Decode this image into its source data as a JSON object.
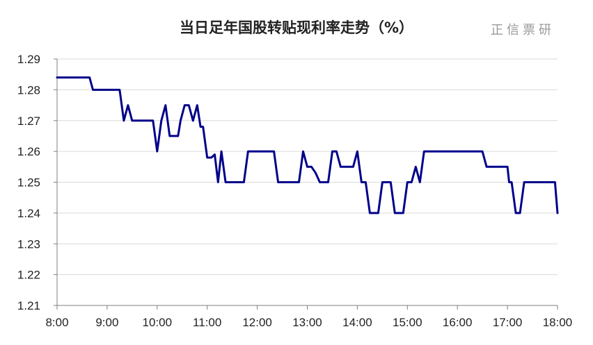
{
  "chart_data": {
    "type": "line",
    "title": "当日足年国股转贴现利率走势（%）",
    "watermark": "正信票研",
    "xlabel": "",
    "ylabel": "",
    "ylim": [
      1.21,
      1.29
    ],
    "yticks": [
      "1.21",
      "1.22",
      "1.23",
      "1.24",
      "1.25",
      "1.26",
      "1.27",
      "1.28",
      "1.29"
    ],
    "xticks": [
      "8:00",
      "9:00",
      "10:00",
      "11:00",
      "12:00",
      "13:00",
      "14:00",
      "15:00",
      "16:00",
      "17:00",
      "18:00"
    ],
    "grid": "horizontal",
    "line_color": "#00008B",
    "series": [
      {
        "x": [
          "8:00",
          "8:39",
          "8:43",
          "9:15",
          "9:20",
          "9:25",
          "9:30",
          "9:55",
          "10:00",
          "10:05",
          "10:10",
          "10:15",
          "10:25",
          "10:28",
          "10:33",
          "10:38",
          "10:43",
          "10:48",
          "10:52",
          "10:55",
          "11:00",
          "11:05",
          "11:09",
          "11:13",
          "11:17",
          "11:22",
          "11:44",
          "11:49",
          "12:20",
          "12:25",
          "12:45",
          "12:50",
          "12:55",
          "13:00",
          "13:05",
          "13:10",
          "13:15",
          "13:25",
          "13:30",
          "13:35",
          "13:40",
          "13:55",
          "14:00",
          "14:05",
          "14:10",
          "14:15",
          "14:25",
          "14:30",
          "14:40",
          "14:45",
          "14:55",
          "15:00",
          "15:05",
          "15:10",
          "15:15",
          "15:20",
          "16:30",
          "16:35",
          "16:55",
          "17:00",
          "17:02",
          "17:05",
          "17:10",
          "17:15",
          "17:20",
          "17:25",
          "17:57",
          "18:00"
        ],
        "y": [
          1.284,
          1.284,
          1.28,
          1.28,
          1.27,
          1.275,
          1.27,
          1.27,
          1.26,
          1.27,
          1.275,
          1.265,
          1.265,
          1.27,
          1.275,
          1.275,
          1.27,
          1.275,
          1.268,
          1.268,
          1.258,
          1.258,
          1.259,
          1.25,
          1.26,
          1.25,
          1.25,
          1.26,
          1.26,
          1.25,
          1.25,
          1.25,
          1.26,
          1.255,
          1.255,
          1.253,
          1.25,
          1.25,
          1.26,
          1.26,
          1.255,
          1.255,
          1.26,
          1.25,
          1.25,
          1.24,
          1.24,
          1.25,
          1.25,
          1.24,
          1.24,
          1.25,
          1.25,
          1.255,
          1.25,
          1.26,
          1.26,
          1.255,
          1.255,
          1.255,
          1.25,
          1.25,
          1.24,
          1.24,
          1.25,
          1.25,
          1.25,
          1.24
        ]
      }
    ]
  }
}
